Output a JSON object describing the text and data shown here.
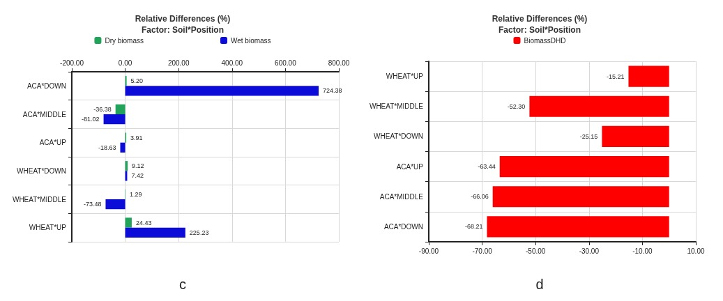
{
  "chart_data": [
    {
      "type": "bar",
      "orientation": "horizontal",
      "title": "Relative Differences (%)\nFactor: Soil*Position",
      "categories": [
        "ACA*DOWN",
        "ACA*MIDDLE",
        "ACA*UP",
        "WHEAT*DOWN",
        "WHEAT*MIDDLE",
        "WHEAT*UP"
      ],
      "series": [
        {
          "name": "Dry biomass",
          "color": "#21a45a",
          "values": [
            5.2,
            -36.38,
            3.91,
            9.12,
            1.29,
            24.43
          ],
          "value_labels": [
            "5.20",
            "-36.38",
            "3.91",
            "9.12",
            "1.29",
            "24.43"
          ]
        },
        {
          "name": "Wet biomass",
          "color": "#0c0cd8",
          "values": [
            724.38,
            -81.02,
            -18.63,
            7.42,
            -73.48,
            225.23
          ],
          "value_labels": [
            "724.38",
            "-81.02",
            "-18.63",
            "7.42",
            "-73.48",
            "225.23"
          ]
        }
      ],
      "x2lim": [
        -200,
        800
      ],
      "x2ticks": [
        {
          "value": -200,
          "label": "-200.00"
        },
        {
          "value": 0,
          "label": "0.00"
        },
        {
          "value": 200,
          "label": "200.00"
        },
        {
          "value": 400,
          "label": "400.00"
        },
        {
          "value": 600,
          "label": "600.00"
        },
        {
          "value": 800,
          "label": "800.00"
        }
      ],
      "grid": true,
      "legend": "top",
      "annotations": [
        "c"
      ]
    },
    {
      "type": "bar",
      "orientation": "horizontal",
      "title": "Relative Differences (%)\nFactor: Soil*Position",
      "categories": [
        "WHEAT*UP",
        "WHEAT*MIDDLE",
        "WHEAT*DOWN",
        "ACA*UP",
        "ACA*MIDDLE",
        "ACA*DOWN"
      ],
      "series": [
        {
          "name": "BiomassDHD",
          "color": "#ff0000",
          "values": [
            -15.21,
            -52.3,
            -25.15,
            -63.44,
            -66.06,
            -68.21
          ],
          "value_labels": [
            "-15.21",
            "-52.30",
            "-25.15",
            "-63.44",
            "-66.06",
            "-68.21"
          ]
        }
      ],
      "xlim": [
        -90,
        10
      ],
      "xticks": [
        {
          "value": -90,
          "label": "-90.00"
        },
        {
          "value": -70,
          "label": "-70.00"
        },
        {
          "value": -50,
          "label": "-50.00"
        },
        {
          "value": -30,
          "label": "-30.00"
        },
        {
          "value": -10,
          "label": "-10.00"
        },
        {
          "value": 10,
          "label": "10.00"
        }
      ],
      "grid": true,
      "legend": "top",
      "annotations": [
        "d"
      ]
    }
  ]
}
